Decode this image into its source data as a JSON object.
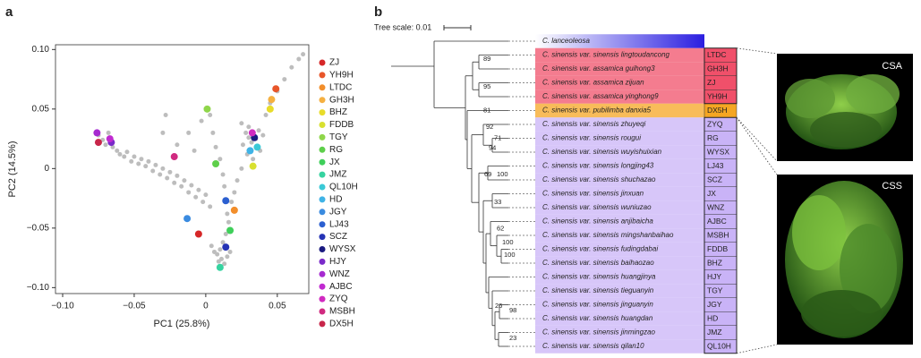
{
  "panel_labels": [
    "a",
    "b"
  ],
  "chart_data": {
    "type": "scatter",
    "xlabel": "PC1 (25.8%)",
    "ylabel": "PC2 (14.5%)",
    "xlim": [
      -0.105,
      0.072
    ],
    "ylim": [
      -0.105,
      0.104
    ],
    "xticks": [
      {
        "value": -0.1,
        "label": "−0.10"
      },
      {
        "value": -0.05,
        "label": "−0.05"
      },
      0,
      0.05
    ],
    "yticks": [
      {
        "value": -0.1,
        "label": "−0.10"
      },
      {
        "value": -0.05,
        "label": "−0.05"
      },
      0,
      0.05,
      {
        "value": 0.1,
        "label": "0.10"
      }
    ],
    "series": [
      {
        "color": "#bdbdbd",
        "x": [
          -0.075,
          -0.072,
          -0.07,
          -0.068,
          -0.065,
          -0.062,
          -0.06,
          -0.057,
          -0.055,
          -0.052,
          -0.05,
          -0.047,
          -0.045,
          -0.042,
          -0.04,
          -0.037,
          -0.035,
          -0.032,
          -0.03,
          -0.027,
          -0.025,
          -0.022,
          -0.02,
          -0.017,
          -0.015,
          -0.012,
          -0.01,
          -0.007,
          -0.005,
          -0.002,
          0.0,
          0.003,
          -0.03,
          -0.028,
          -0.02,
          -0.012,
          -0.008,
          -0.003,
          0.003,
          0.005,
          0.007,
          0.01,
          0.012,
          0.013,
          0.015,
          0.016,
          0.014,
          0.012,
          0.01,
          0.008,
          0.011,
          0.013,
          0.009,
          0.006,
          0.004,
          0.017,
          0.015,
          0.025,
          0.028,
          0.03,
          0.032,
          0.035,
          0.037,
          0.04,
          0.026,
          0.029,
          0.033,
          0.038,
          0.03,
          0.042,
          0.045,
          0.05,
          0.055,
          0.06,
          0.065,
          0.068,
          0.025,
          0.022,
          0.02,
          0.018
        ],
        "y": [
          0.028,
          0.024,
          0.02,
          0.03,
          0.018,
          0.015,
          0.012,
          0.01,
          0.014,
          0.006,
          0.01,
          0.004,
          0.008,
          0.002,
          0.006,
          -0.002,
          0.003,
          -0.005,
          0.0,
          -0.008,
          -0.003,
          -0.012,
          -0.006,
          -0.015,
          -0.01,
          -0.02,
          -0.014,
          -0.024,
          -0.018,
          -0.028,
          -0.022,
          -0.032,
          0.03,
          0.045,
          0.02,
          0.03,
          0.015,
          0.04,
          0.045,
          0.03,
          0.018,
          0.008,
          -0.005,
          -0.015,
          -0.038,
          -0.045,
          -0.055,
          -0.062,
          -0.068,
          -0.072,
          -0.076,
          -0.08,
          -0.078,
          -0.07,
          -0.065,
          -0.07,
          -0.074,
          0.038,
          0.03,
          0.026,
          0.022,
          0.025,
          0.032,
          0.028,
          0.02,
          0.012,
          0.008,
          0.015,
          0.035,
          0.045,
          0.055,
          0.065,
          0.075,
          0.085,
          0.092,
          0.096,
          0.0,
          -0.01,
          -0.02,
          -0.028
        ]
      },
      {
        "name": "ZJ",
        "color": "#d62728",
        "x": [
          -0.005
        ],
        "y": [
          -0.055
        ]
      },
      {
        "name": "YH9H",
        "color": "#e8562a",
        "x": [
          0.049
        ],
        "y": [
          0.067
        ]
      },
      {
        "name": "LTDC",
        "color": "#f28e2b",
        "x": [
          0.02
        ],
        "y": [
          -0.035
        ]
      },
      {
        "name": "GH3H",
        "color": "#f5b041",
        "x": [
          0.046
        ],
        "y": [
          0.058
        ]
      },
      {
        "name": "BHZ",
        "color": "#e8dc2a",
        "x": [
          0.045
        ],
        "y": [
          0.05
        ]
      },
      {
        "name": "FDDB",
        "color": "#d8e030",
        "x": [
          0.033
        ],
        "y": [
          0.002
        ]
      },
      {
        "name": "TGY",
        "color": "#8fd64a",
        "x": [
          0.001
        ],
        "y": [
          0.05
        ]
      },
      {
        "name": "RG",
        "color": "#5ecf4a",
        "x": [
          0.007
        ],
        "y": [
          0.004
        ]
      },
      {
        "name": "JX",
        "color": "#3fcf5a",
        "x": [
          0.017
        ],
        "y": [
          -0.052
        ]
      },
      {
        "name": "JMZ",
        "color": "#36d3a0",
        "x": [
          0.01
        ],
        "y": [
          -0.083
        ]
      },
      {
        "name": "QL10H",
        "color": "#3ac9d6",
        "x": [
          0.036
        ],
        "y": [
          0.018
        ]
      },
      {
        "name": "HD",
        "color": "#3fb3e6",
        "x": [
          0.031
        ],
        "y": [
          0.015
        ]
      },
      {
        "name": "JGY",
        "color": "#3a8be0",
        "x": [
          -0.013
        ],
        "y": [
          -0.042
        ]
      },
      {
        "name": "LJ43",
        "color": "#2b5fd0",
        "x": [
          0.014
        ],
        "y": [
          -0.027
        ]
      },
      {
        "name": "SCZ",
        "color": "#2533b5",
        "x": [
          0.014
        ],
        "y": [
          -0.066
        ]
      },
      {
        "name": "WYSX",
        "color": "#1a1a80",
        "x": [
          0.034
        ],
        "y": [
          0.026
        ]
      },
      {
        "name": "HJY",
        "color": "#7a2ac9",
        "x": [
          -0.066
        ],
        "y": [
          0.022
        ]
      },
      {
        "name": "WNZ",
        "color": "#a62ad0",
        "x": [
          -0.076
        ],
        "y": [
          0.03
        ]
      },
      {
        "name": "AJBC",
        "color": "#c02ad0",
        "x": [
          -0.067
        ],
        "y": [
          0.025
        ]
      },
      {
        "name": "ZYQ",
        "color": "#d02ac0",
        "x": [
          0.0325
        ],
        "y": [
          0.03
        ]
      },
      {
        "name": "MSBH",
        "color": "#d02a80",
        "x": [
          -0.022
        ],
        "y": [
          0.01
        ]
      },
      {
        "name": "DX5H",
        "color": "#c8264a",
        "x": [
          -0.075
        ],
        "y": [
          0.022
        ]
      }
    ]
  },
  "tree": {
    "scale_label": "Tree scale: 0.01",
    "leaves": [
      {
        "name": "C. lanceoleosa"
      },
      {
        "name": "C. sinensis var. sinensis lingtoudancong",
        "code": "LTDC"
      },
      {
        "name": "C. sinensis var. assamica guihong3",
        "code": "GH3H"
      },
      {
        "name": "C. sinensis var. assamica zijuan",
        "code": "ZJ"
      },
      {
        "name": "C. sinensis var. assamica yinghong9",
        "code": "YH9H"
      },
      {
        "name": "C. sinensis var. pubilimba danxia5",
        "code": "DX5H"
      },
      {
        "name": "C. sinensis var. sinensis zhuyeqi",
        "code": "ZYQ"
      },
      {
        "name": "C. sinensis var. sinensis rougui",
        "code": "RG"
      },
      {
        "name": "C. sinensis var. sinensis wuyishuixian",
        "code": "WYSX"
      },
      {
        "name": "C. sinensis var. sinensis longjing43",
        "code": "LJ43"
      },
      {
        "name": "C. sinensis var. sinensis shuchazao",
        "code": "SCZ"
      },
      {
        "name": "C. sinensis var. sinensis jinxuan",
        "code": "JX"
      },
      {
        "name": "C. sinensis var. sinensis wuniuzao",
        "code": "WNZ"
      },
      {
        "name": "C. sinensis var. sinensis anjibaicha",
        "code": "AJBC"
      },
      {
        "name": "C. sinensis var. sinensis mingshanbaihao",
        "code": "MSBH"
      },
      {
        "name": "C. sinensis var. sinensis fudingdabai",
        "code": "FDDB"
      },
      {
        "name": "C. sinensis var. sinensis baihaozao",
        "code": "BHZ"
      },
      {
        "name": "C. sinensis var. sinensis huangjinya",
        "code": "HJY"
      },
      {
        "name": "C. sinensis var. sinensis tieguanyin",
        "code": "TGY"
      },
      {
        "name": "C. sinensis var. sinensis jinguanyin",
        "code": "JGY"
      },
      {
        "name": "C. sinensis var. sinensis huangdan",
        "code": "HD"
      },
      {
        "name": "C. sinensis var. sinensis jinmingzao",
        "code": "JMZ"
      },
      {
        "name": "C. sinensis var. sinensis qilan10",
        "code": "QL10H"
      }
    ],
    "bootstrap": [
      89,
      95,
      81,
      92,
      71,
      94,
      69,
      100,
      33,
      62,
      100,
      100,
      26,
      98,
      23
    ]
  },
  "photos": [
    "CSA",
    "CSS"
  ]
}
